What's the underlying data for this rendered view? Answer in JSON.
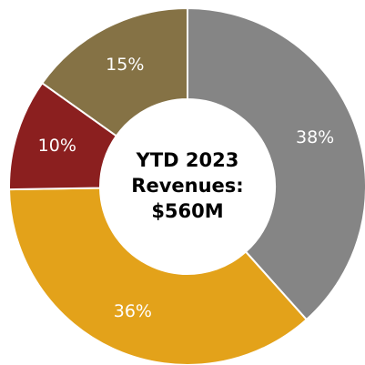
{
  "chart_data": {
    "type": "pie",
    "title": [
      "YTD 2023",
      "Revenues:",
      "$560M"
    ],
    "categories": [
      null,
      null,
      null,
      null
    ],
    "values": [
      38,
      36,
      10,
      15
    ],
    "value_labels": [
      "38%",
      "36%",
      "10%",
      "15%"
    ],
    "colors": [
      "#858585",
      "#e3a21a",
      "#8b1f1f",
      "#857245"
    ],
    "donut": true
  }
}
